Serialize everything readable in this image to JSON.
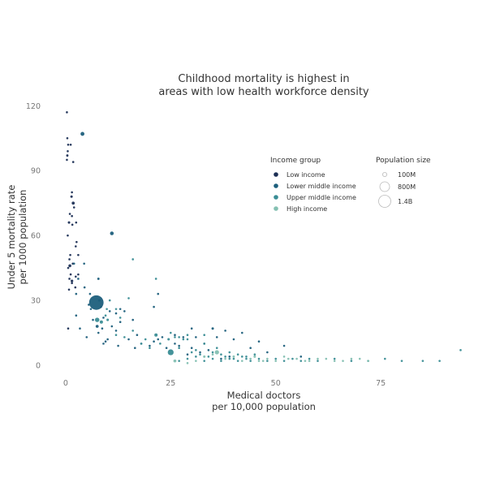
{
  "chart_data": {
    "type": "scatter",
    "title": [
      "Childhood mortality is highest in",
      "areas with low health workforce density"
    ],
    "xlabel": [
      "Medical doctors",
      "per 10,000 population"
    ],
    "ylabel": [
      "Under 5 mortality rate",
      "per 1000 population"
    ],
    "xlim": [
      -5,
      97
    ],
    "ylim": [
      -3,
      122
    ],
    "x_ticks": [
      0,
      25,
      50,
      75
    ],
    "y_ticks": [
      0,
      30,
      60,
      90,
      120
    ],
    "grid": false,
    "legend_placement": "top-right",
    "color_legend": {
      "title": "Income group",
      "entries": [
        {
          "label": "Low income",
          "color": "#1c2f55"
        },
        {
          "label": "Lower middle income",
          "color": "#1d5f7c"
        },
        {
          "label": "Upper middle income",
          "color": "#3a8d95"
        },
        {
          "label": "High income",
          "color": "#84c0b2"
        }
      ]
    },
    "size_legend": {
      "title": "Population size",
      "entries": [
        {
          "label": "100M",
          "population_m": 100
        },
        {
          "label": "800M",
          "population_m": 800
        },
        {
          "label": "1.4B",
          "population_m": 1400
        }
      ]
    },
    "series": [
      {
        "name": "Low income",
        "color": "#1c2f55",
        "points": [
          [
            0.3,
            117,
            15
          ],
          [
            0.4,
            105,
            25
          ],
          [
            0.6,
            102,
            15
          ],
          [
            0.5,
            99,
            12
          ],
          [
            0.4,
            97,
            35
          ],
          [
            0.3,
            95,
            20
          ],
          [
            1.2,
            102,
            15
          ],
          [
            1.8,
            94,
            30
          ],
          [
            1.5,
            80,
            12
          ],
          [
            1.4,
            78,
            40
          ],
          [
            1.8,
            75,
            60
          ],
          [
            2,
            73,
            10
          ],
          [
            1,
            70,
            25
          ],
          [
            1.5,
            69,
            15
          ],
          [
            0.8,
            66,
            40
          ],
          [
            1.6,
            65,
            20
          ],
          [
            2.5,
            66,
            15
          ],
          [
            0.5,
            60,
            10
          ],
          [
            2.6,
            57,
            20
          ],
          [
            2.4,
            55,
            15
          ],
          [
            1.1,
            51,
            10
          ],
          [
            3,
            51,
            12
          ],
          [
            0.9,
            49,
            12
          ],
          [
            1.7,
            47,
            25
          ],
          [
            1,
            46,
            55
          ],
          [
            0.6,
            45,
            10
          ],
          [
            1.2,
            42,
            30
          ],
          [
            0.9,
            40,
            12
          ],
          [
            1.5,
            39,
            45
          ],
          [
            2.4,
            41,
            15
          ],
          [
            3,
            42,
            10
          ],
          [
            1.5,
            38,
            20
          ],
          [
            2.3,
            36,
            10
          ],
          [
            0.8,
            35,
            25
          ],
          [
            0.6,
            17,
            12
          ]
        ]
      },
      {
        "name": "Lower middle income",
        "color": "#1d5f7c",
        "points": [
          [
            4,
            107,
            100
          ],
          [
            11,
            61,
            90
          ],
          [
            2,
            47,
            30
          ],
          [
            4.4,
            47,
            25
          ],
          [
            4.5,
            36,
            10
          ],
          [
            3,
            40,
            30
          ],
          [
            7.8,
            40,
            35
          ],
          [
            2.5,
            33,
            10
          ],
          [
            5.8,
            33,
            10
          ],
          [
            7.3,
            29,
            1380
          ],
          [
            8,
            30,
            40
          ],
          [
            5.5,
            28,
            10
          ],
          [
            6,
            26,
            12
          ],
          [
            2.5,
            23,
            15
          ],
          [
            3.4,
            17,
            10
          ],
          [
            8.4,
            27,
            20
          ],
          [
            10.5,
            25,
            12
          ],
          [
            12,
            24,
            10
          ],
          [
            13,
            26,
            15
          ],
          [
            14,
            25,
            10
          ],
          [
            16,
            21,
            20
          ],
          [
            11,
            18,
            15
          ],
          [
            12,
            16,
            10
          ],
          [
            7.5,
            18,
            60
          ],
          [
            8.7,
            17,
            25
          ],
          [
            7.8,
            15,
            15
          ],
          [
            13,
            20,
            12
          ],
          [
            15,
            12,
            20
          ],
          [
            9.5,
            11,
            10
          ],
          [
            17,
            14,
            10
          ],
          [
            18,
            10,
            12
          ],
          [
            20,
            9,
            10
          ],
          [
            22,
            12,
            20
          ],
          [
            24,
            8,
            15
          ],
          [
            26,
            10,
            12
          ],
          [
            27,
            9,
            20
          ],
          [
            31,
            13,
            12
          ],
          [
            33,
            10,
            10
          ],
          [
            35,
            17,
            40
          ],
          [
            40,
            12,
            20
          ],
          [
            42,
            15,
            10
          ],
          [
            44,
            8,
            12
          ],
          [
            46,
            11,
            12
          ],
          [
            39,
            4,
            15
          ],
          [
            37,
            3,
            10
          ],
          [
            28,
            13,
            12
          ],
          [
            30,
            8,
            10
          ],
          [
            32,
            6,
            10
          ],
          [
            26,
            14,
            15
          ],
          [
            23,
            13,
            10
          ],
          [
            21,
            11,
            12
          ],
          [
            16.5,
            8,
            10
          ],
          [
            12.5,
            9,
            10
          ],
          [
            10,
            12,
            10
          ],
          [
            9,
            10,
            12
          ],
          [
            6.5,
            21,
            20
          ],
          [
            5,
            13,
            10
          ],
          [
            9,
            22,
            20
          ],
          [
            22,
            33,
            10
          ],
          [
            21,
            27,
            12
          ],
          [
            30,
            17,
            10
          ],
          [
            36,
            13,
            10
          ],
          [
            38,
            16,
            10
          ],
          [
            48,
            6,
            12
          ],
          [
            52,
            9,
            10
          ],
          [
            56,
            4,
            10
          ],
          [
            29,
            5,
            12
          ],
          [
            34,
            7,
            10
          ]
        ]
      },
      {
        "name": "Upper middle income",
        "color": "#3a8d95",
        "points": [
          [
            25,
            6,
            230
          ],
          [
            7.5,
            21,
            130
          ],
          [
            8.5,
            20,
            70
          ],
          [
            9.5,
            23,
            30
          ],
          [
            10,
            21,
            40
          ],
          [
            9.8,
            26,
            20
          ],
          [
            13,
            22,
            25
          ],
          [
            21.5,
            14,
            70
          ],
          [
            22.5,
            10,
            30
          ],
          [
            24.5,
            12,
            40
          ],
          [
            25,
            15,
            25
          ],
          [
            26,
            13,
            20
          ],
          [
            27,
            8,
            30
          ],
          [
            28,
            12,
            15
          ],
          [
            29,
            14,
            12
          ],
          [
            30,
            6,
            20
          ],
          [
            31,
            7,
            15
          ],
          [
            32,
            5,
            15
          ],
          [
            33,
            10,
            12
          ],
          [
            34,
            4,
            15
          ],
          [
            35,
            6,
            20
          ],
          [
            36,
            8,
            25
          ],
          [
            37,
            5,
            15
          ],
          [
            38,
            4,
            20
          ],
          [
            39,
            6,
            12
          ],
          [
            40,
            3,
            15
          ],
          [
            41,
            5,
            15
          ],
          [
            42,
            4,
            12
          ],
          [
            43,
            3,
            15
          ],
          [
            44,
            2,
            12
          ],
          [
            45,
            5,
            20
          ],
          [
            46,
            3,
            12
          ],
          [
            48,
            2,
            12
          ],
          [
            50,
            3,
            10
          ],
          [
            52,
            2,
            12
          ],
          [
            54,
            3,
            10
          ],
          [
            56,
            2,
            12
          ],
          [
            58,
            3,
            10
          ],
          [
            60,
            2,
            10
          ],
          [
            64,
            3,
            12
          ],
          [
            68,
            2,
            10
          ],
          [
            72,
            2,
            12
          ],
          [
            76,
            3,
            10
          ],
          [
            80,
            2,
            10
          ],
          [
            85,
            2,
            10
          ],
          [
            89,
            2,
            10
          ],
          [
            94,
            7,
            20
          ],
          [
            27,
            2,
            25
          ],
          [
            29,
            3,
            15
          ],
          [
            31,
            4,
            20
          ],
          [
            33,
            2,
            12
          ],
          [
            35,
            3,
            15
          ],
          [
            37,
            2,
            20
          ],
          [
            39,
            3,
            12
          ],
          [
            41,
            2,
            15
          ],
          [
            43,
            4,
            12
          ],
          [
            12,
            14,
            15
          ],
          [
            14,
            13,
            10
          ],
          [
            16,
            16,
            12
          ],
          [
            18,
            10,
            15
          ],
          [
            19,
            12,
            10
          ],
          [
            20,
            8,
            12
          ],
          [
            21.5,
            40,
            10
          ],
          [
            16,
            49,
            10
          ],
          [
            10.5,
            30,
            10
          ],
          [
            27,
            13,
            12
          ],
          [
            29,
            12,
            10
          ],
          [
            33,
            14,
            12
          ],
          [
            15,
            31,
            10
          ],
          [
            12,
            26,
            12
          ]
        ]
      },
      {
        "name": "High income",
        "color": "#84c0b2",
        "points": [
          [
            36,
            6,
            120
          ],
          [
            26,
            2,
            60
          ],
          [
            33,
            4,
            40
          ],
          [
            35,
            5,
            30
          ],
          [
            38,
            3,
            30
          ],
          [
            40,
            4,
            35
          ],
          [
            42,
            2,
            20
          ],
          [
            44,
            3,
            30
          ],
          [
            45,
            4,
            40
          ],
          [
            46,
            2,
            20
          ],
          [
            48,
            3,
            15
          ],
          [
            50,
            2,
            20
          ],
          [
            52,
            4,
            25
          ],
          [
            55,
            3,
            20
          ],
          [
            58,
            2,
            15
          ],
          [
            60,
            3,
            20
          ],
          [
            64,
            2,
            15
          ],
          [
            68,
            3,
            10
          ],
          [
            72,
            2,
            15
          ],
          [
            31,
            2,
            12
          ],
          [
            29,
            1,
            15
          ],
          [
            47,
            2,
            12
          ],
          [
            53,
            3,
            15
          ],
          [
            57,
            2,
            12
          ],
          [
            62,
            3,
            15
          ],
          [
            66,
            2,
            12
          ],
          [
            70,
            3,
            12
          ]
        ]
      }
    ]
  }
}
